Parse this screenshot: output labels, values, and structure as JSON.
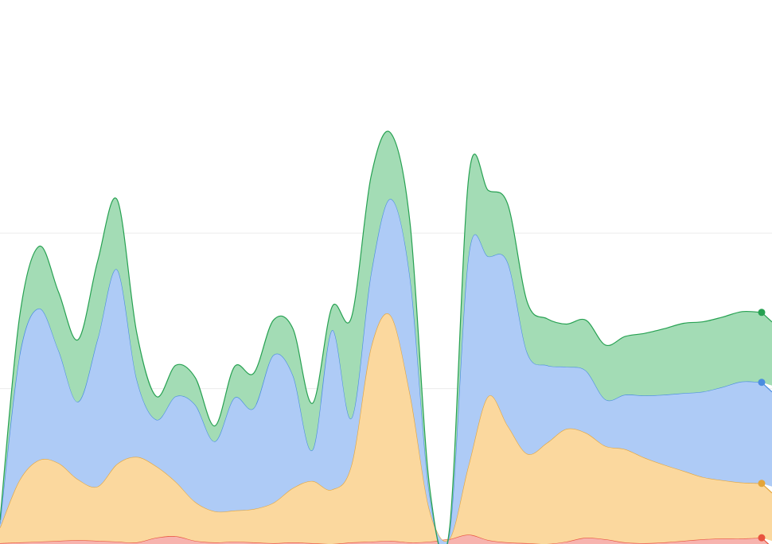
{
  "chart_data": {
    "type": "area",
    "stacked": true,
    "title": "",
    "xlabel": "",
    "ylabel": "",
    "x": [
      0,
      1,
      2,
      3,
      4,
      5,
      6,
      7,
      8,
      9,
      10,
      11,
      12,
      13,
      14,
      15,
      16,
      17,
      18,
      19,
      20,
      21,
      22,
      23,
      24,
      25,
      26,
      27,
      28,
      29,
      30,
      31,
      32,
      33,
      34,
      35,
      36,
      37,
      38,
      39
    ],
    "ylim": [
      0,
      7
    ],
    "grid": true,
    "gridlines_at": [
      2,
      4
    ],
    "series": [
      {
        "color": "#e8533f",
        "fill": "#f7b3ae",
        "values": [
          0.01,
          0.02,
          0.03,
          0.04,
          0.05,
          0.04,
          0.03,
          0.02,
          0.08,
          0.1,
          0.04,
          0.02,
          0.03,
          0.02,
          0.01,
          0.02,
          0.01,
          0.0,
          0.02,
          0.03,
          0.04,
          0.02,
          0.03,
          0.06,
          0.12,
          0.05,
          0.02,
          0.01,
          0.0,
          0.03,
          0.08,
          0.06,
          0.02,
          0.01,
          0.02,
          0.04,
          0.06,
          0.07,
          0.07,
          0.08
        ]
      },
      {
        "color": "#e4a53a",
        "fill": "#fbd89e",
        "values": [
          0.2,
          0.8,
          1.05,
          1.0,
          0.78,
          0.7,
          1.0,
          1.1,
          0.92,
          0.7,
          0.5,
          0.4,
          0.4,
          0.43,
          0.52,
          0.7,
          0.8,
          0.7,
          1.0,
          2.5,
          2.9,
          1.9,
          0.4,
          0.0,
          0.9,
          1.85,
          1.5,
          1.15,
          1.3,
          1.45,
          1.35,
          1.2,
          1.2,
          1.1,
          1.0,
          0.9,
          0.8,
          0.75,
          0.72,
          0.7
        ]
      },
      {
        "color": "#4a8de0",
        "fill": "#aecbf6",
        "values": [
          0.05,
          1.6,
          1.95,
          1.45,
          1.0,
          1.9,
          2.5,
          1.0,
          0.6,
          1.1,
          1.25,
          0.9,
          1.45,
          1.3,
          1.9,
          1.45,
          0.4,
          2.05,
          0.6,
          0.95,
          1.5,
          1.5,
          0.2,
          0.05,
          2.7,
          1.8,
          2.1,
          1.3,
          1.0,
          0.8,
          0.8,
          0.6,
          0.7,
          0.8,
          0.9,
          1.0,
          1.1,
          1.2,
          1.3,
          1.3
        ]
      },
      {
        "color": "#27a152",
        "fill": "#a3dcb5",
        "values": [
          0.05,
          0.5,
          0.8,
          0.75,
          0.8,
          1.0,
          0.9,
          0.6,
          0.3,
          0.4,
          0.35,
          0.2,
          0.4,
          0.45,
          0.45,
          0.6,
          0.6,
          0.3,
          1.3,
          1.25,
          0.85,
          0.7,
          0.1,
          0.05,
          1.0,
          0.85,
          0.75,
          0.65,
          0.6,
          0.55,
          0.65,
          0.7,
          0.75,
          0.8,
          0.85,
          0.9,
          0.9,
          0.9,
          0.9,
          0.9
        ]
      }
    ]
  }
}
